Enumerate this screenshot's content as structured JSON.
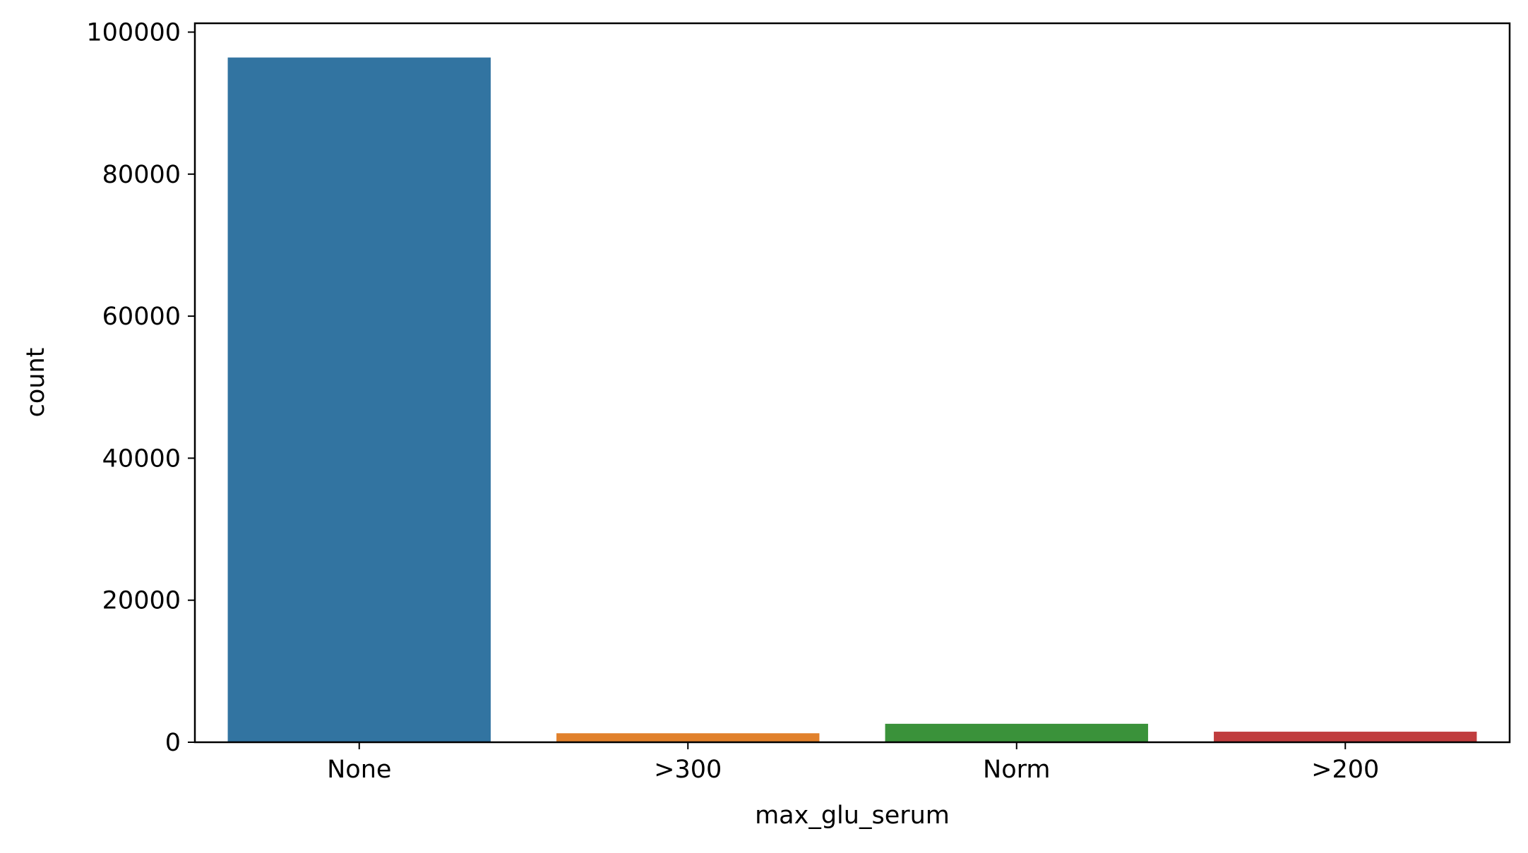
{
  "chart_data": {
    "type": "bar",
    "title": "",
    "xlabel": "max_glu_serum",
    "ylabel": "count",
    "categories": [
      "None",
      ">300",
      "Norm",
      ">200"
    ],
    "values": [
      96420,
      1264,
      2597,
      1485
    ],
    "colors": [
      "#3274a1",
      "#e1812c",
      "#3a923a",
      "#c03d3e"
    ],
    "ylim": [
      0,
      101241
    ],
    "yticks": [
      0,
      20000,
      40000,
      60000,
      80000,
      100000
    ],
    "ytick_labels": [
      "0",
      "20000",
      "40000",
      "60000",
      "80000",
      "100000"
    ],
    "grid": false
  }
}
